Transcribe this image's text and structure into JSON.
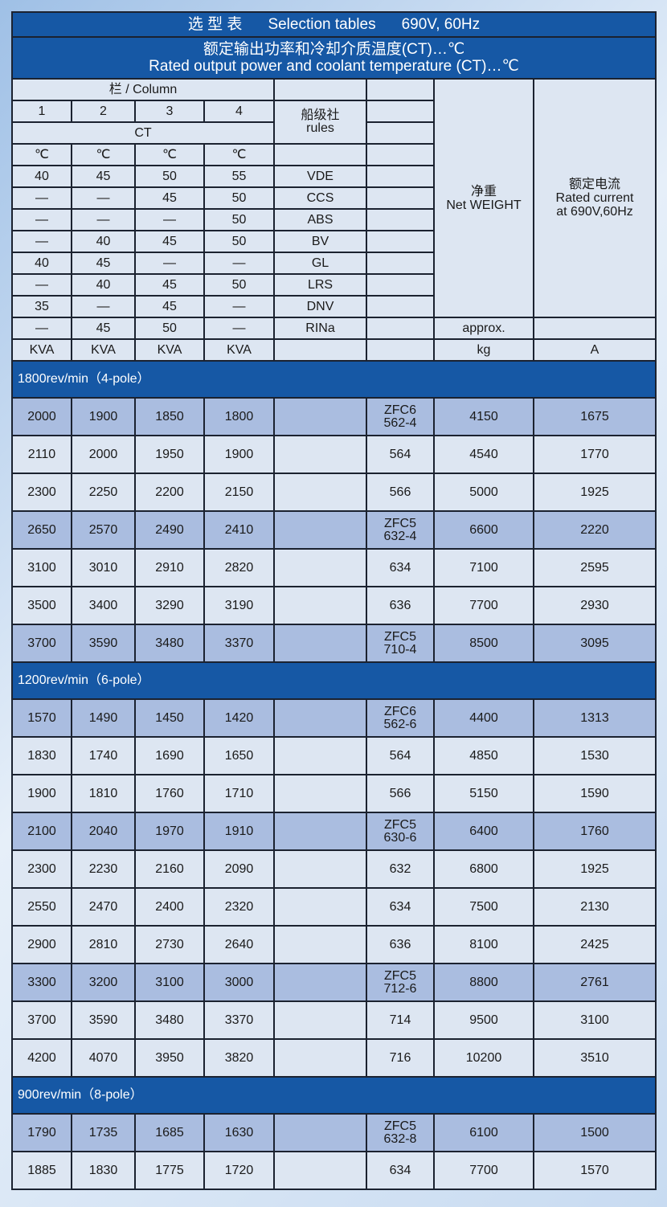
{
  "title": {
    "cn": "选 型 表",
    "en": "Selection tables",
    "spec": "690V, 60Hz"
  },
  "subtitle": {
    "cn": "额定输出功率和冷却介质温度(CT)…℃",
    "en": "Rated output power and coolant temperature (CT)…℃"
  },
  "header": {
    "column_label": "栏 / Column",
    "columns": [
      "1",
      "2",
      "3",
      "4"
    ],
    "ct": "CT",
    "unit_c": "℃",
    "rules_label": "船级社\nrules",
    "weight_label": "净重\nNet WEIGHT",
    "current_label": "额定电流\nRated current\nat 690V,60Hz",
    "approx": "approx.",
    "units": [
      "KVA",
      "KVA",
      "KVA",
      "KVA"
    ],
    "weight_unit": "kg",
    "current_unit": "A",
    "societies": [
      {
        "temps": [
          "40",
          "45",
          "50",
          "55"
        ],
        "name": "VDE"
      },
      {
        "temps": [
          "—",
          "—",
          "45",
          "50"
        ],
        "name": "CCS"
      },
      {
        "temps": [
          "—",
          "—",
          "—",
          "50"
        ],
        "name": "ABS"
      },
      {
        "temps": [
          "—",
          "40",
          "45",
          "50"
        ],
        "name": "BV"
      },
      {
        "temps": [
          "40",
          "45",
          "—",
          "—"
        ],
        "name": "GL"
      },
      {
        "temps": [
          "—",
          "40",
          "45",
          "50"
        ],
        "name": "LRS"
      },
      {
        "temps": [
          "35",
          "—",
          "45",
          "—"
        ],
        "name": "DNV"
      },
      {
        "temps": [
          "—",
          "45",
          "50",
          "—"
        ],
        "name": "RINa"
      }
    ]
  },
  "sections": [
    {
      "label": "1800rev/min（4-pole）",
      "rows": [
        {
          "kva": [
            "2000",
            "1900",
            "1850",
            "1800"
          ],
          "model": "ZFC6\n562-4",
          "weight": "4150",
          "current": "1675",
          "hl": true
        },
        {
          "kva": [
            "2110",
            "2000",
            "1950",
            "1900"
          ],
          "model": "564",
          "weight": "4540",
          "current": "1770"
        },
        {
          "kva": [
            "2300",
            "2250",
            "2200",
            "2150"
          ],
          "model": "566",
          "weight": "5000",
          "current": "1925"
        },
        {
          "kva": [
            "2650",
            "2570",
            "2490",
            "2410"
          ],
          "model": "ZFC5\n632-4",
          "weight": "6600",
          "current": "2220",
          "hl": true
        },
        {
          "kva": [
            "3100",
            "3010",
            "2910",
            "2820"
          ],
          "model": "634",
          "weight": "7100",
          "current": "2595"
        },
        {
          "kva": [
            "3500",
            "3400",
            "3290",
            "3190"
          ],
          "model": "636",
          "weight": "7700",
          "current": "2930"
        },
        {
          "kva": [
            "3700",
            "3590",
            "3480",
            "3370"
          ],
          "model": "ZFC5\n710-4",
          "weight": "8500",
          "current": "3095",
          "hl": true
        }
      ]
    },
    {
      "label": "1200rev/min（6-pole）",
      "rows": [
        {
          "kva": [
            "1570",
            "1490",
            "1450",
            "1420"
          ],
          "model": "ZFC6\n562-6",
          "weight": "4400",
          "current": "1313",
          "hl": true
        },
        {
          "kva": [
            "1830",
            "1740",
            "1690",
            "1650"
          ],
          "model": "564",
          "weight": "4850",
          "current": "1530"
        },
        {
          "kva": [
            "1900",
            "1810",
            "1760",
            "1710"
          ],
          "model": "566",
          "weight": "5150",
          "current": "1590"
        },
        {
          "kva": [
            "2100",
            "2040",
            "1970",
            "1910"
          ],
          "model": "ZFC5\n630-6",
          "weight": "6400",
          "current": "1760",
          "hl": true
        },
        {
          "kva": [
            "2300",
            "2230",
            "2160",
            "2090"
          ],
          "model": "632",
          "weight": "6800",
          "current": "1925"
        },
        {
          "kva": [
            "2550",
            "2470",
            "2400",
            "2320"
          ],
          "model": "634",
          "weight": "7500",
          "current": "2130"
        },
        {
          "kva": [
            "2900",
            "2810",
            "2730",
            "2640"
          ],
          "model": "636",
          "weight": "8100",
          "current": "2425"
        },
        {
          "kva": [
            "3300",
            "3200",
            "3100",
            "3000"
          ],
          "model": "ZFC5\n712-6",
          "weight": "8800",
          "current": "2761",
          "hl": true
        },
        {
          "kva": [
            "3700",
            "3590",
            "3480",
            "3370"
          ],
          "model": "714",
          "weight": "9500",
          "current": "3100"
        },
        {
          "kva": [
            "4200",
            "4070",
            "3950",
            "3820"
          ],
          "model": "716",
          "weight": "10200",
          "current": "3510"
        }
      ]
    },
    {
      "label": "900rev/min（8-pole）",
      "rows": [
        {
          "kva": [
            "1790",
            "1735",
            "1685",
            "1630"
          ],
          "model": "ZFC5\n632-8",
          "weight": "6100",
          "current": "1500",
          "hl": true
        },
        {
          "kva": [
            "1885",
            "1830",
            "1775",
            "1720"
          ],
          "model": "634",
          "weight": "7700",
          "current": "1570"
        }
      ]
    }
  ],
  "colors": {
    "header_blue": "#1658a5",
    "cell": "#dde6f2",
    "highlight": "#aabde0"
  }
}
